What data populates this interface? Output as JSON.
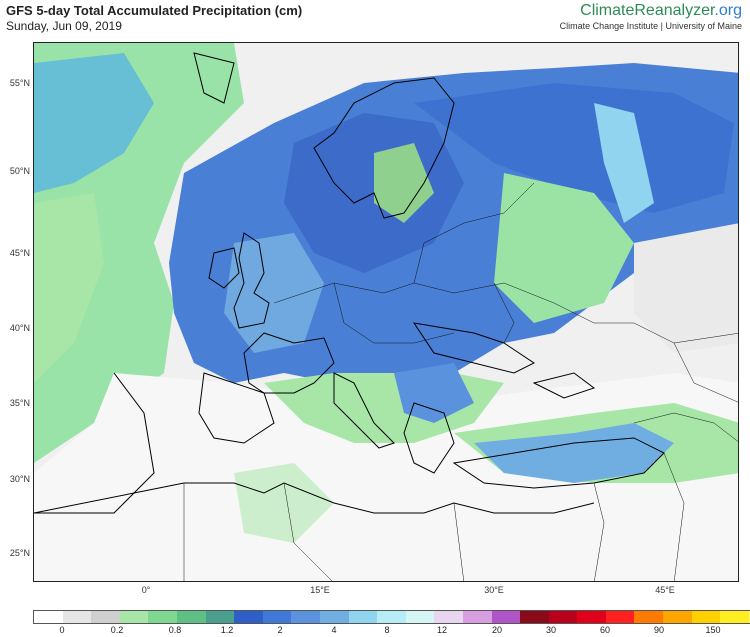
{
  "header": {
    "title": "GFS 5-day Total Accumulated Precipitation (cm)",
    "date": "Sunday, Jun 09, 2019",
    "brand_main": "ClimateReanalyzer",
    "brand_tld": ".org",
    "brand_sub": "Climate Change Institute | University of Maine"
  },
  "map": {
    "lat_labels": [
      "55°N",
      "50°N",
      "45°N",
      "40°N",
      "35°N",
      "30°N",
      "25°N"
    ],
    "lon_labels": [
      "0°",
      "15°E",
      "30°E",
      "45°E"
    ]
  },
  "legend": {
    "colors": [
      "#ffffff",
      "#e6e6e6",
      "#cfcfcf",
      "#a8e6a8",
      "#7fd88f",
      "#5fbf85",
      "#4a9f8f",
      "#2e5fc9",
      "#3f78d6",
      "#5b92dd",
      "#70aee2",
      "#90d4f0",
      "#b5ecf5",
      "#d6f5f5",
      "#e8d6f0",
      "#d79ee0",
      "#b055c8",
      "#8a0a1a",
      "#b8001a",
      "#e0001a",
      "#ff2020",
      "#ff7a00",
      "#ffa500",
      "#ffd000",
      "#ffee20",
      "#fff38a"
    ],
    "labels": [
      "0",
      "0.2",
      "0.8",
      "1.2",
      "2",
      "4",
      "8",
      "12",
      "20",
      "30",
      "60",
      "90",
      "150"
    ]
  }
}
